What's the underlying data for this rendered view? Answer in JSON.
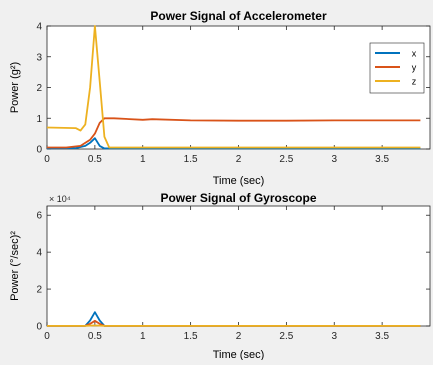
{
  "chart_data": [
    {
      "type": "line",
      "title": "Power Signal of Accelerometer",
      "xlabel": "Time (sec)",
      "ylabel": "Power (g²)",
      "xlim": [
        0,
        4
      ],
      "ylim": [
        0,
        4
      ],
      "x_ticks": [
        "0",
        "0.5",
        "1",
        "1.5",
        "2",
        "2.5",
        "3",
        "3.5"
      ],
      "y_ticks": [
        "0",
        "1",
        "2",
        "3",
        "4"
      ],
      "grid": false,
      "legend": "top-right",
      "series": [
        {
          "name": "x",
          "color": "#0072bd",
          "x": [
            0,
            0.3,
            0.4,
            0.45,
            0.5,
            0.55,
            0.6,
            1.0,
            2.0,
            3.0,
            3.9
          ],
          "y": [
            0.02,
            0.03,
            0.1,
            0.2,
            0.35,
            0.1,
            0.02,
            0.02,
            0.02,
            0.02,
            0.02
          ]
        },
        {
          "name": "y",
          "color": "#d95319",
          "x": [
            0,
            0.2,
            0.35,
            0.45,
            0.5,
            0.55,
            0.6,
            0.7,
            1.0,
            1.1,
            1.5,
            2.0,
            2.5,
            3.0,
            3.5,
            3.9
          ],
          "y": [
            0.05,
            0.05,
            0.1,
            0.3,
            0.5,
            0.85,
            1.0,
            1.0,
            0.95,
            0.97,
            0.93,
            0.92,
            0.92,
            0.93,
            0.93,
            0.93
          ]
        },
        {
          "name": "z",
          "color": "#edb120",
          "x": [
            0,
            0.3,
            0.35,
            0.4,
            0.45,
            0.5,
            0.55,
            0.6,
            0.65,
            1.0,
            2.0,
            3.0,
            3.9
          ],
          "y": [
            0.7,
            0.68,
            0.6,
            0.8,
            2.0,
            4.0,
            2.2,
            0.4,
            0.05,
            0.05,
            0.05,
            0.05,
            0.05
          ]
        }
      ]
    },
    {
      "type": "line",
      "title": "Power Signal of Gyroscope",
      "xlabel": "Time (sec)",
      "ylabel": "Power (°/sec)²",
      "exponent_label": "× 10⁴",
      "xlim": [
        0,
        4
      ],
      "ylim": [
        0,
        65000
      ],
      "x_ticks": [
        "0",
        "0.5",
        "1",
        "1.5",
        "2",
        "2.5",
        "3",
        "3.5"
      ],
      "y_ticks": [
        "0",
        "2",
        "4",
        "6"
      ],
      "grid": false,
      "series": [
        {
          "name": "x",
          "color": "#0072bd",
          "x": [
            0,
            0.4,
            0.45,
            0.5,
            0.55,
            0.6,
            1.0,
            2.0,
            3.0,
            3.9
          ],
          "y": [
            50,
            100,
            3000,
            7500,
            3000,
            100,
            50,
            50,
            50,
            50
          ]
        },
        {
          "name": "y",
          "color": "#d95319",
          "x": [
            0,
            0.4,
            0.45,
            0.5,
            0.55,
            0.6,
            1.0,
            2.0,
            3.0,
            3.9
          ],
          "y": [
            50,
            100,
            1200,
            2800,
            1200,
            100,
            50,
            50,
            50,
            50
          ]
        },
        {
          "name": "z",
          "color": "#edb120",
          "x": [
            0,
            0.4,
            0.5,
            0.6,
            1.0,
            2.0,
            3.0,
            3.9
          ],
          "y": [
            30,
            60,
            300,
            60,
            30,
            30,
            30,
            30
          ]
        }
      ]
    }
  ]
}
